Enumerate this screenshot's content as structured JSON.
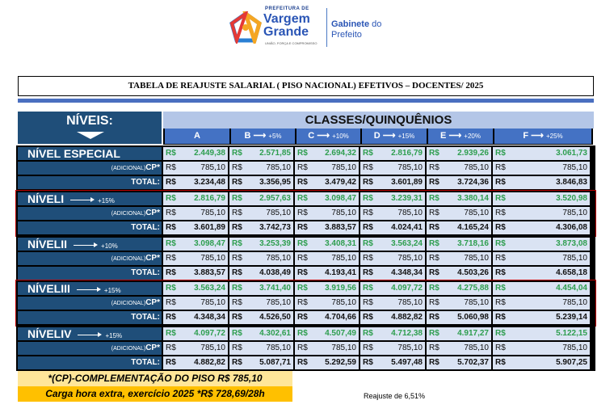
{
  "logo": {
    "prefix": "PREFEITURA DE",
    "name_line1": "Vargem",
    "name_line2": "Grande",
    "slogan": "UNIÃO, FORÇA E COMPROMISSO",
    "office_bold": "Gabinete",
    "office_rest": " do",
    "office_line2": "Prefeito"
  },
  "title": "TABELA DE REAJUSTE SALARIAL ( PISO NACIONAL) EFETIVOS – DOCENTES/ 2025",
  "header": {
    "levels_label": "NÍVEIS:",
    "classes_label": "CLASSES/QUINQUÊNIOS"
  },
  "columns": [
    {
      "letter": "A",
      "pct": ""
    },
    {
      "letter": "B",
      "pct": "+5%"
    },
    {
      "letter": "C",
      "pct": "+10%"
    },
    {
      "letter": "D",
      "pct": "+15%"
    },
    {
      "letter": "E",
      "pct": "+20%"
    },
    {
      "letter": "F",
      "pct": "+25%"
    }
  ],
  "currency": "R$",
  "sub_label_small": "(ADICIONAL)",
  "sub_label_big": "CP*",
  "total_label": "TOTAL:",
  "groups": [
    {
      "name": "NÍVEL ESPECIAL",
      "pct": "",
      "red": false,
      "base": [
        "2.449,38",
        "2.571,85",
        "2.694,32",
        "2.816,79",
        "2.939,26",
        "3.061,73"
      ],
      "cp": [
        "785,10",
        "785,10",
        "785,10",
        "785,10",
        "785,10",
        "785,10"
      ],
      "total": [
        "3.234,48",
        "3.356,95",
        "3.479,42",
        "3.601,89",
        "3.724,36",
        "3.846,83"
      ]
    },
    {
      "name": "NÍVELI",
      "pct": "+15%",
      "red": true,
      "base": [
        "2.816,79",
        "2.957,63",
        "3.098,47",
        "3.239,31",
        "3.380,14",
        "3.520,98"
      ],
      "cp": [
        "785,10",
        "785,10",
        "785,10",
        "785,10",
        "785,10",
        "785,10"
      ],
      "total": [
        "3.601,89",
        "3.742,73",
        "3.883,57",
        "4.024,41",
        "4.165,24",
        "4.306,08"
      ]
    },
    {
      "name": "NÍVELII",
      "pct": "+10%",
      "red": false,
      "base": [
        "3.098,47",
        "3.253,39",
        "3.408,31",
        "3.563,24",
        "3.718,16",
        "3.873,08"
      ],
      "cp": [
        "785,10",
        "785,10",
        "785,10",
        "785,10",
        "785,10",
        "785,10"
      ],
      "total": [
        "3.883,57",
        "4.038,49",
        "4.193,41",
        "4.348,34",
        "4.503,26",
        "4.658,18"
      ]
    },
    {
      "name": "NÍVELIII",
      "pct": "+15%",
      "red": true,
      "base": [
        "3.563,24",
        "3.741,40",
        "3.919,56",
        "4.097,72",
        "4.275,88",
        "4.454,04"
      ],
      "cp": [
        "785,10",
        "785,10",
        "785,10",
        "785,10",
        "785,10",
        "785,10"
      ],
      "total": [
        "4.348,34",
        "4.526,50",
        "4.704,66",
        "4.882,82",
        "5.060,98",
        "5.239,14"
      ]
    },
    {
      "name": "NÍVELIV",
      "pct": "+15%",
      "red": false,
      "base": [
        "4.097,72",
        "4.302,61",
        "4.507,49",
        "4.712,38",
        "4.917,27",
        "5.122,15"
      ],
      "cp": [
        "785,10",
        "785,10",
        "785,10",
        "785,10",
        "785,10",
        "785,10"
      ],
      "total": [
        "4.882,82",
        "5.087,71",
        "5.292,59",
        "5.497,48",
        "5.702,37",
        "5.907,25"
      ]
    }
  ],
  "footer": {
    "note1": "*(CP)-COMPLEMENTAÇÃO DO PISO R$ 785,10",
    "note2": "Carga hora extra, exercício 2025 *R$ 728,69/28h",
    "adjustment": "Reajuste de 6,51%"
  }
}
